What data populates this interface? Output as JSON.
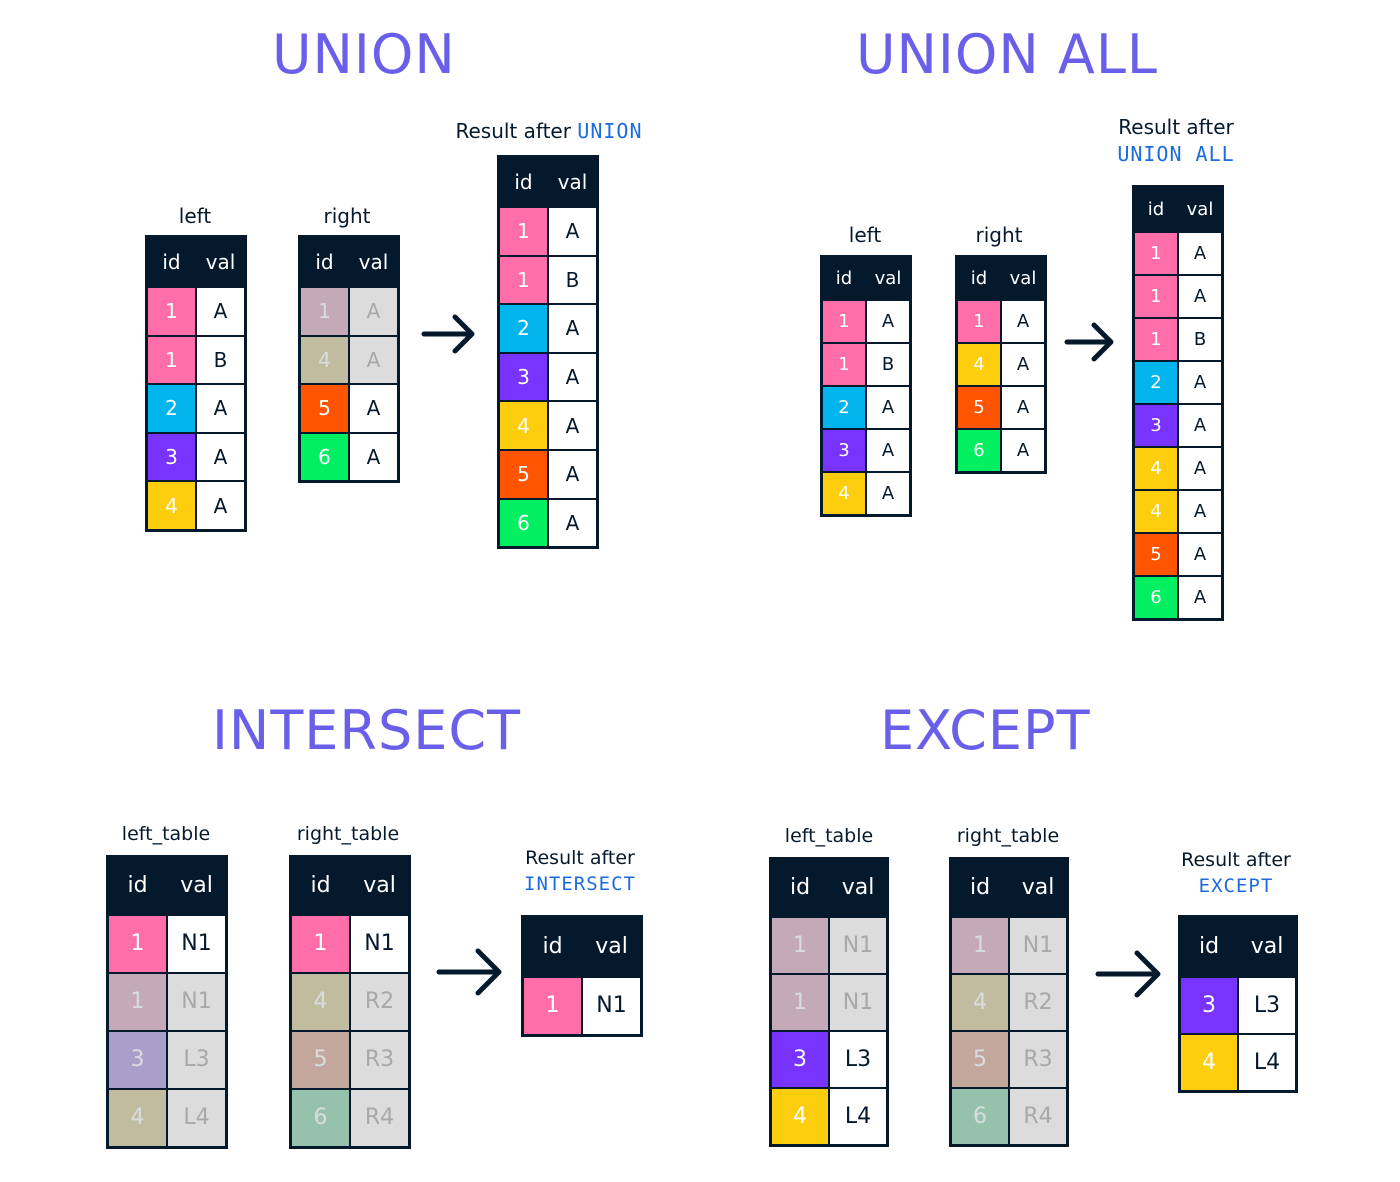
{
  "colors": {
    "title": "#6a5fe8",
    "code": "#1c6be0",
    "header": "#05192d",
    "pink": "#ff6ea9",
    "blue": "#03b5ed",
    "purple": "#7933ff",
    "yellow": "#fcce0d",
    "orange": "#ff5400",
    "green": "#03ef62",
    "white": "#ffffff",
    "dimmed_pink": "#e6c4d1",
    "dimmed_tan": "#e2d8b4",
    "dimmed_lilac": "#c7b6e6",
    "dimmed_salmon": "#e6c0b0",
    "dimmed_mint": "#b0e0c4",
    "dimmed_gray": "#dcdcdc",
    "dimmed_text": "#a8a8a8"
  },
  "panels": [
    {
      "title": "UNION",
      "tables": [
        {
          "label": "left",
          "header": [
            "id",
            "val"
          ],
          "rows": [
            {
              "id": "1",
              "val": "A",
              "color": "pink"
            },
            {
              "id": "1",
              "val": "B",
              "color": "pink"
            },
            {
              "id": "2",
              "val": "A",
              "color": "blue"
            },
            {
              "id": "3",
              "val": "A",
              "color": "purple"
            },
            {
              "id": "4",
              "val": "A",
              "color": "yellow"
            }
          ]
        },
        {
          "label": "right",
          "header": [
            "id",
            "val"
          ],
          "rows": [
            {
              "id": "1",
              "val": "A",
              "color": "dimmed_pink",
              "dim": true
            },
            {
              "id": "4",
              "val": "A",
              "color": "dimmed_tan",
              "dim": true
            },
            {
              "id": "5",
              "val": "A",
              "color": "orange"
            },
            {
              "id": "6",
              "val": "A",
              "color": "green"
            }
          ]
        }
      ],
      "result": {
        "label_text": "Result after",
        "label_code": "UNION",
        "header": [
          "id",
          "val"
        ],
        "rows": [
          {
            "id": "1",
            "val": "A",
            "color": "pink"
          },
          {
            "id": "1",
            "val": "B",
            "color": "pink"
          },
          {
            "id": "2",
            "val": "A",
            "color": "blue"
          },
          {
            "id": "3",
            "val": "A",
            "color": "purple"
          },
          {
            "id": "4",
            "val": "A",
            "color": "yellow"
          },
          {
            "id": "5",
            "val": "A",
            "color": "orange"
          },
          {
            "id": "6",
            "val": "A",
            "color": "green"
          }
        ]
      }
    },
    {
      "title": "UNION ALL",
      "tables": [
        {
          "label": "left",
          "header": [
            "id",
            "val"
          ],
          "rows": [
            {
              "id": "1",
              "val": "A",
              "color": "pink"
            },
            {
              "id": "1",
              "val": "B",
              "color": "pink"
            },
            {
              "id": "2",
              "val": "A",
              "color": "blue"
            },
            {
              "id": "3",
              "val": "A",
              "color": "purple"
            },
            {
              "id": "4",
              "val": "A",
              "color": "yellow"
            }
          ]
        },
        {
          "label": "right",
          "header": [
            "id",
            "val"
          ],
          "rows": [
            {
              "id": "1",
              "val": "A",
              "color": "pink"
            },
            {
              "id": "4",
              "val": "A",
              "color": "yellow"
            },
            {
              "id": "5",
              "val": "A",
              "color": "orange"
            },
            {
              "id": "6",
              "val": "A",
              "color": "green"
            }
          ]
        }
      ],
      "result": {
        "label_text": "Result after",
        "label_code": "UNION ALL",
        "header": [
          "id",
          "val"
        ],
        "rows": [
          {
            "id": "1",
            "val": "A",
            "color": "pink"
          },
          {
            "id": "1",
            "val": "A",
            "color": "pink"
          },
          {
            "id": "1",
            "val": "B",
            "color": "pink"
          },
          {
            "id": "2",
            "val": "A",
            "color": "blue"
          },
          {
            "id": "3",
            "val": "A",
            "color": "purple"
          },
          {
            "id": "4",
            "val": "A",
            "color": "yellow"
          },
          {
            "id": "4",
            "val": "A",
            "color": "yellow"
          },
          {
            "id": "5",
            "val": "A",
            "color": "orange"
          },
          {
            "id": "6",
            "val": "A",
            "color": "green"
          }
        ]
      }
    },
    {
      "title": "INTERSECT",
      "tables": [
        {
          "label": "left_table",
          "header": [
            "id",
            "val"
          ],
          "rows": [
            {
              "id": "1",
              "val": "N1",
              "color": "pink"
            },
            {
              "id": "1",
              "val": "N1",
              "color": "dimmed_pink",
              "dim": true
            },
            {
              "id": "3",
              "val": "L3",
              "color": "dimmed_lilac",
              "dim": true
            },
            {
              "id": "4",
              "val": "L4",
              "color": "dimmed_tan",
              "dim": true
            }
          ]
        },
        {
          "label": "right_table",
          "header": [
            "id",
            "val"
          ],
          "rows": [
            {
              "id": "1",
              "val": "N1",
              "color": "pink"
            },
            {
              "id": "4",
              "val": "R2",
              "color": "dimmed_tan",
              "dim": true
            },
            {
              "id": "5",
              "val": "R3",
              "color": "dimmed_salmon",
              "dim": true
            },
            {
              "id": "6",
              "val": "R4",
              "color": "dimmed_mint",
              "dim": true
            }
          ]
        }
      ],
      "result": {
        "label_text": "Result after",
        "label_code": "INTERSECT",
        "header": [
          "id",
          "val"
        ],
        "rows": [
          {
            "id": "1",
            "val": "N1",
            "color": "pink"
          }
        ]
      }
    },
    {
      "title": "EXCEPT",
      "tables": [
        {
          "label": "left_table",
          "header": [
            "id",
            "val"
          ],
          "rows": [
            {
              "id": "1",
              "val": "N1",
              "color": "dimmed_pink",
              "dim": true
            },
            {
              "id": "1",
              "val": "N1",
              "color": "dimmed_pink",
              "dim": true
            },
            {
              "id": "3",
              "val": "L3",
              "color": "purple"
            },
            {
              "id": "4",
              "val": "L4",
              "color": "yellow"
            }
          ]
        },
        {
          "label": "right_table",
          "header": [
            "id",
            "val"
          ],
          "rows": [
            {
              "id": "1",
              "val": "N1",
              "color": "dimmed_pink",
              "dim": true
            },
            {
              "id": "4",
              "val": "R2",
              "color": "dimmed_tan",
              "dim": true
            },
            {
              "id": "5",
              "val": "R3",
              "color": "dimmed_salmon",
              "dim": true
            },
            {
              "id": "6",
              "val": "R4",
              "color": "dimmed_mint",
              "dim": true
            }
          ]
        }
      ],
      "result": {
        "label_text": "Result after",
        "label_code": "EXCEPT",
        "header": [
          "id",
          "val"
        ],
        "rows": [
          {
            "id": "3",
            "val": "L3",
            "color": "purple"
          },
          {
            "id": "4",
            "val": "L4",
            "color": "yellow"
          }
        ]
      }
    }
  ]
}
